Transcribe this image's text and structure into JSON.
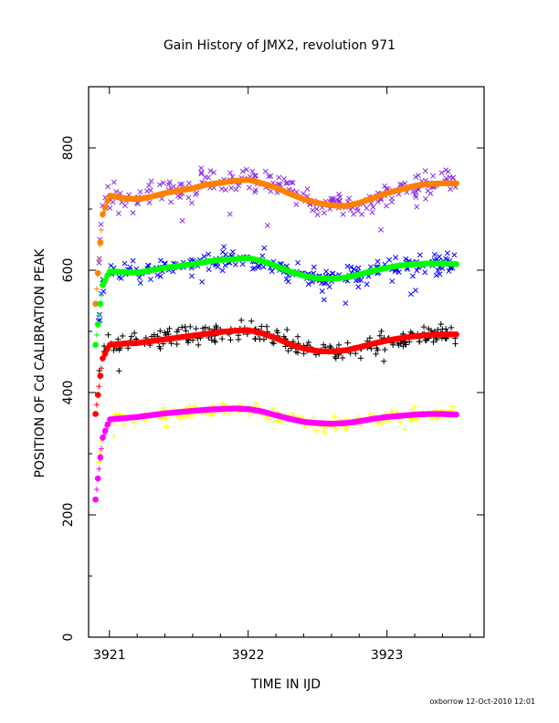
{
  "chart_data": {
    "type": "scatter",
    "title": "Gain History of JMX2, revolution 971",
    "xlabel": "TIME IN IJD",
    "ylabel": "POSITION OF Cd CALIBRATION PEAK",
    "xlim": [
      3920.85,
      3923.7
    ],
    "ylim": [
      0,
      900
    ],
    "x_ticks": [
      3921,
      3922,
      3923
    ],
    "y_ticks": [
      0,
      200,
      400,
      600,
      800
    ],
    "grid": false,
    "legend": "none",
    "footer": "oxborrow 12-Oct-2010 12:01",
    "series": [
      {
        "marker": "x",
        "color": "#8a2be2",
        "scatter": 22,
        "x": [
          3920.9,
          3920.95,
          3921.0,
          3921.1,
          3921.2,
          3921.3,
          3921.4,
          3921.5,
          3921.6,
          3921.7,
          3921.8,
          3921.9,
          3922.0,
          3922.1,
          3922.2,
          3922.3,
          3922.4,
          3922.5,
          3922.6,
          3922.7,
          3922.8,
          3922.9,
          3923.0,
          3923.1,
          3923.2,
          3923.3,
          3923.4,
          3923.5
        ],
        "y": [
          545,
          700,
          720,
          720,
          718,
          722,
          728,
          732,
          735,
          740,
          743,
          744,
          745,
          742,
          738,
          730,
          720,
          712,
          708,
          706,
          710,
          718,
          728,
          735,
          740,
          742,
          743,
          742
        ]
      },
      {
        "marker": "line",
        "color": "#ff8000",
        "x": [
          3920.9,
          3920.95,
          3921.0,
          3921.1,
          3921.2,
          3921.3,
          3921.4,
          3921.5,
          3921.6,
          3921.7,
          3921.8,
          3921.9,
          3922.0,
          3922.1,
          3922.2,
          3922.3,
          3922.4,
          3922.5,
          3922.6,
          3922.7,
          3922.8,
          3922.9,
          3923.0,
          3923.1,
          3923.2,
          3923.3,
          3923.4,
          3923.5
        ],
        "y": [
          545,
          690,
          722,
          718,
          716,
          720,
          726,
          730,
          734,
          740,
          743,
          746,
          748,
          742,
          735,
          725,
          716,
          710,
          706,
          705,
          710,
          718,
          726,
          732,
          738,
          741,
          742,
          742
        ]
      },
      {
        "marker": "x",
        "color": "#0000ff",
        "scatter": 18,
        "x": [
          3920.9,
          3920.95,
          3921.0,
          3921.1,
          3921.2,
          3921.3,
          3921.4,
          3921.5,
          3921.6,
          3921.7,
          3921.8,
          3921.9,
          3922.0,
          3922.1,
          3922.2,
          3922.3,
          3922.4,
          3922.5,
          3922.6,
          3922.7,
          3922.8,
          3922.9,
          3923.0,
          3923.1,
          3923.2,
          3923.3,
          3923.4,
          3923.5
        ],
        "y": [
          480,
          570,
          598,
          598,
          595,
          600,
          604,
          607,
          610,
          614,
          616,
          617,
          618,
          614,
          608,
          600,
          593,
          588,
          586,
          587,
          592,
          598,
          603,
          607,
          610,
          611,
          612,
          612
        ]
      },
      {
        "marker": "line",
        "color": "#00ff00",
        "x": [
          3920.9,
          3920.95,
          3921.0,
          3921.1,
          3921.2,
          3921.3,
          3921.4,
          3921.5,
          3921.6,
          3921.7,
          3921.8,
          3921.9,
          3922.0,
          3922.1,
          3922.2,
          3922.3,
          3922.4,
          3922.5,
          3922.6,
          3922.7,
          3922.8,
          3922.9,
          3923.0,
          3923.1,
          3923.2,
          3923.3,
          3923.4,
          3923.5
        ],
        "y": [
          478,
          575,
          598,
          597,
          596,
          600,
          604,
          607,
          610,
          614,
          617,
          618,
          620,
          615,
          607,
          598,
          591,
          587,
          586,
          588,
          593,
          599,
          604,
          608,
          610,
          611,
          611,
          610
        ]
      },
      {
        "marker": "+",
        "color": "#000000",
        "scatter": 16,
        "x": [
          3920.9,
          3920.95,
          3921.0,
          3921.1,
          3921.2,
          3921.3,
          3921.4,
          3921.5,
          3921.6,
          3921.7,
          3921.8,
          3921.9,
          3922.0,
          3922.1,
          3922.2,
          3922.3,
          3922.4,
          3922.5,
          3922.6,
          3922.7,
          3922.8,
          3922.9,
          3923.0,
          3923.1,
          3923.2,
          3923.3,
          3923.4,
          3923.5
        ],
        "y": [
          380,
          460,
          478,
          480,
          480,
          483,
          486,
          489,
          492,
          496,
          499,
          501,
          502,
          498,
          490,
          480,
          472,
          467,
          466,
          468,
          473,
          479,
          484,
          488,
          491,
          493,
          494,
          494
        ]
      },
      {
        "marker": "line",
        "color": "#ff0000",
        "x": [
          3920.9,
          3920.95,
          3921.0,
          3921.1,
          3921.2,
          3921.3,
          3921.4,
          3921.5,
          3921.6,
          3921.7,
          3921.8,
          3921.9,
          3922.0,
          3922.1,
          3922.2,
          3922.3,
          3922.4,
          3922.5,
          3922.6,
          3922.7,
          3922.8,
          3922.9,
          3923.0,
          3923.1,
          3923.2,
          3923.3,
          3923.4,
          3923.5
        ],
        "y": [
          365,
          455,
          478,
          480,
          481,
          484,
          487,
          490,
          493,
          496,
          499,
          501,
          502,
          497,
          489,
          479,
          472,
          468,
          467,
          469,
          474,
          480,
          485,
          489,
          492,
          494,
          495,
          495
        ]
      },
      {
        "marker": "+",
        "color": "#ffff00",
        "scatter": 10,
        "x": [
          3920.9,
          3920.95,
          3921.0,
          3921.1,
          3921.2,
          3921.3,
          3921.4,
          3921.5,
          3921.6,
          3921.7,
          3921.8,
          3921.9,
          3922.0,
          3922.1,
          3922.2,
          3922.3,
          3922.4,
          3922.5,
          3922.6,
          3922.7,
          3922.8,
          3922.9,
          3923.0,
          3923.1,
          3923.2,
          3923.3,
          3923.4,
          3923.5
        ],
        "y": [
          240,
          330,
          356,
          358,
          360,
          363,
          366,
          368,
          370,
          372,
          373,
          373,
          372,
          368,
          362,
          356,
          352,
          350,
          349,
          350,
          353,
          357,
          360,
          362,
          364,
          365,
          365,
          365
        ]
      },
      {
        "marker": "line",
        "color": "#ff00ff",
        "x": [
          3920.9,
          3920.95,
          3921.0,
          3921.1,
          3921.2,
          3921.3,
          3921.4,
          3921.5,
          3921.6,
          3921.7,
          3921.8,
          3921.9,
          3922.0,
          3922.1,
          3922.2,
          3922.3,
          3922.4,
          3922.5,
          3922.6,
          3922.7,
          3922.8,
          3922.9,
          3923.0,
          3923.1,
          3923.2,
          3923.3,
          3923.4,
          3923.5
        ],
        "y": [
          225,
          325,
          356,
          358,
          360,
          363,
          366,
          368,
          370,
          372,
          373,
          374,
          373,
          369,
          363,
          357,
          352,
          350,
          349,
          350,
          353,
          357,
          360,
          362,
          364,
          365,
          365,
          364
        ]
      }
    ]
  }
}
